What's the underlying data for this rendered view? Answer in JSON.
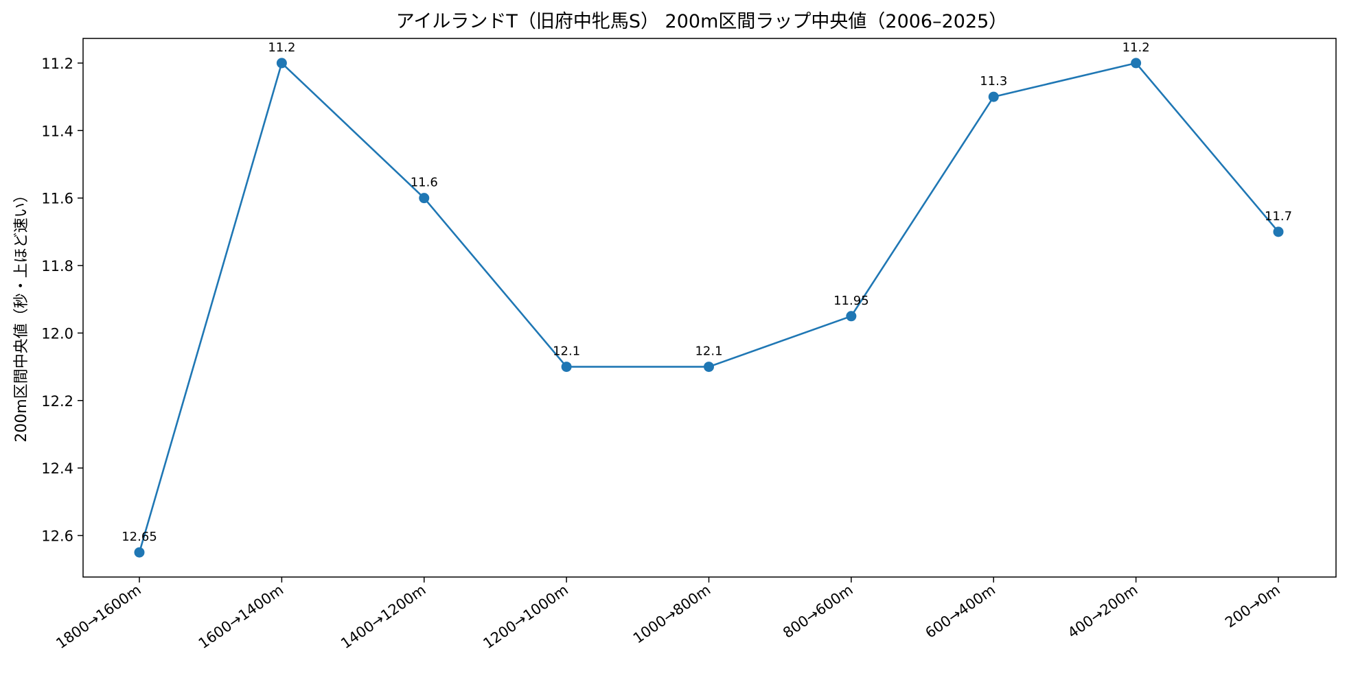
{
  "chart_data": {
    "type": "line",
    "title": "アイルランドT（旧府中牝馬S） 200m区間ラップ中央値（2006–2025）",
    "xlabel": "",
    "ylabel": "200m区間中央値（秒・上ほど速い）",
    "categories": [
      "1800→1600m",
      "1600→1400m",
      "1400→1200m",
      "1200→1000m",
      "1000→800m",
      "800→600m",
      "600→400m",
      "400→200m",
      "200→0m"
    ],
    "series": [
      {
        "values": [
          12.65,
          11.2,
          11.6,
          12.1,
          12.1,
          11.95,
          11.3,
          11.2,
          11.7
        ],
        "value_labels": [
          "12.65",
          "11.2",
          "11.6",
          "12.1",
          "12.1",
          "11.95",
          "11.3",
          "11.2",
          "11.7"
        ]
      }
    ],
    "y_ticks": [
      "11.2",
      "11.4",
      "11.6",
      "11.8",
      "12.0",
      "12.2",
      "12.4",
      "12.6"
    ],
    "y_tick_values": [
      11.2,
      11.4,
      11.6,
      11.8,
      12.0,
      12.2,
      12.4,
      12.6
    ],
    "ylim": [
      11.127,
      12.723
    ],
    "y_inverted": true,
    "grid": false,
    "legend": "none",
    "line_color": "#1f77b4",
    "marker_color": "#1f77b4"
  }
}
